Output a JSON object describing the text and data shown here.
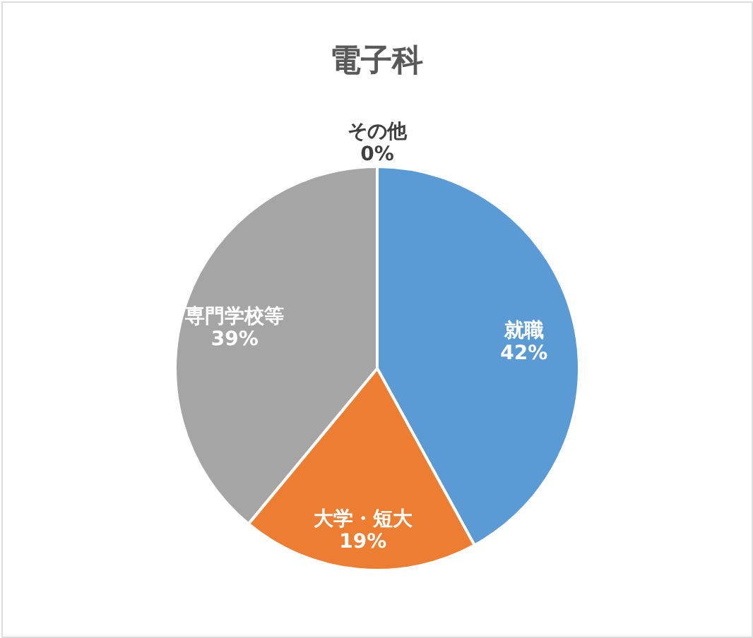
{
  "chart_data": {
    "type": "pie",
    "title": "電子科",
    "categories": [
      "就職",
      "大学・短大",
      "専門学校等",
      "その他"
    ],
    "values": [
      42,
      19,
      39,
      0
    ],
    "colors": [
      "#5b9bd5",
      "#ed7d31",
      "#a5a5a5",
      "#ffc000"
    ],
    "value_labels": [
      "42%",
      "19%",
      "39%",
      "0%"
    ]
  }
}
